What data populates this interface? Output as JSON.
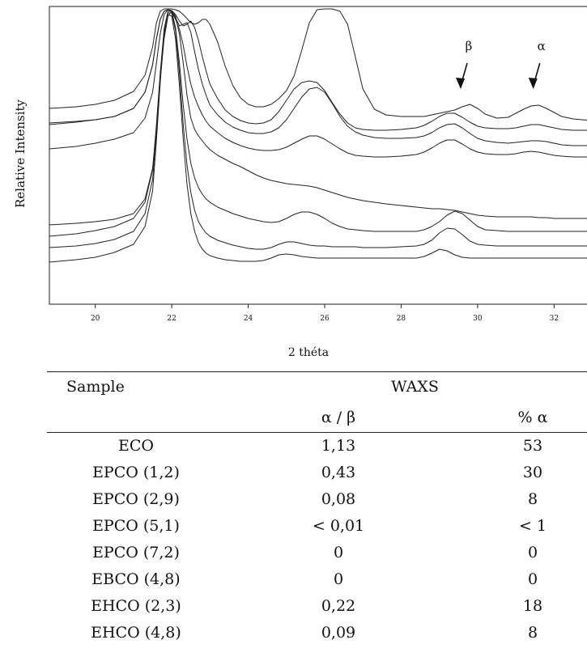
{
  "chart_data": {
    "type": "line",
    "xlabel": "2 théta",
    "ylabel": "Relative Intensity",
    "xlim": [
      18.8,
      33.2
    ],
    "x_ticks": [
      "20",
      "22",
      "24",
      "26",
      "28",
      "30",
      "32"
    ],
    "y_ticks": [],
    "grid": false,
    "series_count": 8,
    "x": [
      18.8,
      19.5,
      20.0,
      20.5,
      21.0,
      21.3,
      21.5,
      21.6,
      21.7,
      21.8,
      21.9,
      22.0,
      22.1,
      22.2,
      22.3,
      22.4,
      22.5,
      22.6,
      22.7,
      22.8,
      22.9,
      23.0,
      23.2,
      23.4,
      23.6,
      23.8,
      24.0,
      24.2,
      24.4,
      24.6,
      24.8,
      25.0,
      25.2,
      25.4,
      25.6,
      25.8,
      26.0,
      26.2,
      26.4,
      26.6,
      26.8,
      27.0,
      27.3,
      27.6,
      28.0,
      28.4,
      28.6,
      28.8,
      29.0,
      29.2,
      29.4,
      29.6,
      29.8,
      30.0,
      30.2,
      30.5,
      30.8,
      31.0,
      31.2,
      31.4,
      31.6,
      31.8,
      32.0,
      32.2,
      32.5,
      33.0,
      33.2
    ],
    "series": [
      {
        "values": [
          126,
          124,
          121,
          116,
          105,
          85,
          50,
          20,
          6,
          3,
          3,
          3,
          4,
          6,
          10,
          15,
          20,
          22,
          20,
          16,
          16,
          22,
          44,
          74,
          98,
          113,
          121,
          124,
          124,
          121,
          114,
          104,
          86,
          54,
          20,
          4,
          3,
          3,
          6,
          22,
          62,
          102,
          127,
          134,
          136,
          136,
          136,
          134,
          132,
          130,
          128,
          124,
          121,
          126,
          133,
          138,
          137,
          132,
          127,
          123,
          122,
          126,
          131,
          136,
          139,
          141,
          141
        ]
      },
      {
        "values": [
          146,
          143,
          140,
          136,
          126,
          106,
          72,
          40,
          16,
          6,
          4,
          5,
          10,
          18,
          24,
          22,
          18,
          26,
          42,
          62,
          80,
          96,
          114,
          128,
          136,
          141,
          144,
          145,
          144,
          140,
          130,
          116,
          102,
          94,
          92,
          94,
          104,
          119,
          133,
          144,
          150,
          152,
          153,
          153,
          152,
          150,
          147,
          142,
          136,
          132,
          132,
          137,
          143,
          148,
          150,
          151,
          151,
          150,
          148,
          146,
          146,
          148,
          150,
          152,
          153,
          153,
          153
        ]
      },
      {
        "values": [
          144,
          142,
          140,
          136,
          126,
          106,
          72,
          40,
          16,
          6,
          4,
          6,
          14,
          24,
          22,
          20,
          32,
          56,
          78,
          96,
          110,
          122,
          134,
          143,
          149,
          153,
          156,
          157,
          157,
          155,
          150,
          140,
          126,
          112,
          102,
          100,
          106,
          120,
          136,
          148,
          155,
          159,
          162,
          163,
          163,
          162,
          160,
          156,
          150,
          146,
          145,
          150,
          157,
          163,
          166,
          168,
          169,
          168,
          167,
          166,
          166,
          167,
          169,
          171,
          172,
          172,
          172
        ]
      },
      {
        "values": [
          176,
          173,
          169,
          164,
          156,
          138,
          106,
          70,
          34,
          10,
          4,
          6,
          16,
          28,
          48,
          74,
          96,
          112,
          124,
          134,
          142,
          148,
          156,
          163,
          168,
          172,
          175,
          177,
          178,
          178,
          177,
          174,
          169,
          164,
          160,
          160,
          164,
          170,
          176,
          181,
          184,
          185,
          186,
          186,
          185,
          183,
          180,
          175,
          169,
          165,
          165,
          170,
          176,
          180,
          182,
          183,
          183,
          182,
          180,
          179,
          180,
          182,
          184,
          185,
          186,
          186,
          186
        ]
      },
      {
        "values": [
          270,
          268,
          266,
          263,
          256,
          238,
          200,
          152,
          90,
          40,
          12,
          6,
          12,
          34,
          70,
          110,
          138,
          152,
          160,
          166,
          172,
          177,
          184,
          189,
          194,
          198,
          203,
          208,
          212,
          215,
          217,
          219,
          220,
          221,
          222,
          224,
          227,
          230,
          233,
          236,
          238,
          240,
          242,
          244,
          246,
          248,
          249,
          250,
          250,
          251,
          252,
          254,
          256,
          258,
          259,
          260,
          260,
          260,
          260,
          260,
          261,
          261,
          262,
          262,
          262,
          262,
          262
        ]
      },
      {
        "values": [
          284,
          281,
          277,
          272,
          262,
          242,
          202,
          146,
          82,
          28,
          6,
          6,
          26,
          70,
          122,
          164,
          194,
          212,
          224,
          232,
          238,
          242,
          248,
          252,
          256,
          259,
          262,
          264,
          266,
          267,
          266,
          262,
          257,
          254,
          254,
          257,
          262,
          268,
          272,
          275,
          276,
          277,
          278,
          278,
          278,
          278,
          276,
          272,
          266,
          258,
          253,
          256,
          264,
          272,
          276,
          277,
          278,
          278,
          278,
          278,
          278,
          278,
          278,
          278,
          278,
          278,
          278
        ]
      },
      {
        "values": [
          298,
          296,
          293,
          288,
          278,
          256,
          214,
          156,
          88,
          30,
          8,
          8,
          30,
          82,
          146,
          196,
          230,
          252,
          266,
          274,
          280,
          284,
          289,
          292,
          295,
          297,
          299,
          300,
          300,
          298,
          294,
          291,
          291,
          293,
          295,
          296,
          296,
          297,
          297,
          297,
          297,
          298,
          298,
          298,
          297,
          296,
          294,
          289,
          280,
          274,
          275,
          282,
          290,
          294,
          295,
          296,
          296,
          296,
          296,
          296,
          296,
          296,
          296,
          296,
          296,
          296,
          296
        ]
      },
      {
        "values": [
          316,
          313,
          310,
          304,
          294,
          272,
          228,
          166,
          94,
          34,
          10,
          12,
          40,
          98,
          164,
          220,
          256,
          278,
          292,
          300,
          305,
          308,
          311,
          313,
          314,
          315,
          315,
          315,
          314,
          311,
          307,
          306,
          307,
          309,
          310,
          311,
          311,
          311,
          311,
          311,
          311,
          311,
          311,
          311,
          311,
          311,
          309,
          305,
          300,
          302,
          307,
          310,
          311,
          311,
          311,
          311,
          311,
          311,
          311,
          311,
          311,
          311,
          311,
          311,
          311,
          311,
          311
        ]
      }
    ],
    "annotations": [
      {
        "text": "β",
        "x": 29.6
      },
      {
        "text": "α",
        "x": 31.5
      }
    ]
  },
  "table": {
    "group_header": "WAXS",
    "columns": [
      "Sample",
      "α / β",
      "% α"
    ],
    "rows": [
      [
        "ECO",
        "1,13",
        "53"
      ],
      [
        "EPCO (1,2)",
        "0,43",
        "30"
      ],
      [
        "EPCO (2,9)",
        "0,08",
        "8"
      ],
      [
        "EPCO (5,1)",
        "< 0,01",
        "< 1"
      ],
      [
        "EPCO (7,2)",
        "0",
        "0"
      ],
      [
        "EBCO (4,8)",
        "0",
        "0"
      ],
      [
        "EHCO (2,3)",
        "0,22",
        "18"
      ],
      [
        "EHCO (4,8)",
        "0,09",
        "8"
      ]
    ]
  }
}
